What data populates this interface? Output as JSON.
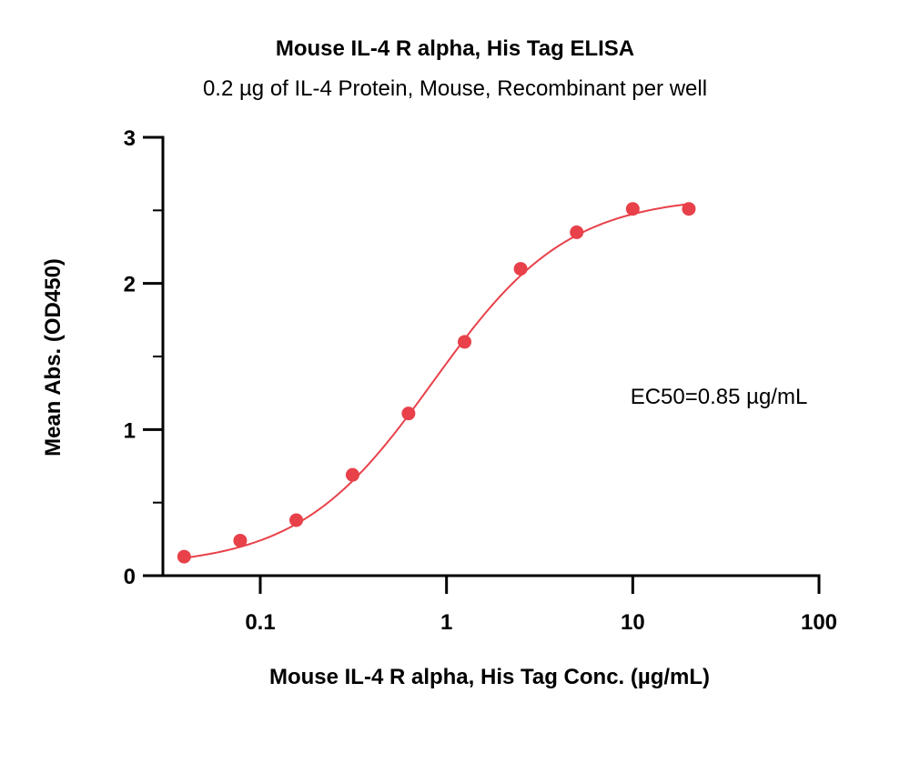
{
  "chart_data": {
    "type": "scatter",
    "title": "Mouse IL-4 R alpha, His Tag ELISA",
    "subtitle": "0.2 µg of IL-4 Protein, Mouse, Recombinant per well",
    "xlabel": "Mouse IL-4 R alpha, His Tag Conc. (µg/mL)",
    "ylabel": "Mean Abs. (OD450)",
    "x_scale": "log",
    "xlim": [
      0.03,
      100
    ],
    "ylim": [
      0,
      3
    ],
    "x_ticks": [
      0.1,
      1,
      10,
      100
    ],
    "x_tick_labels": [
      "0.1",
      "1",
      "10",
      "100"
    ],
    "y_ticks": [
      0,
      1,
      2,
      3
    ],
    "y_tick_labels": [
      "0",
      "1",
      "2",
      "3"
    ],
    "grid": false,
    "color": "#e8414a",
    "series": [
      {
        "x": [
          0.039,
          0.078,
          0.156,
          0.313,
          0.625,
          1.25,
          2.5,
          5,
          10,
          20
        ],
        "y": [
          0.13,
          0.24,
          0.38,
          0.69,
          1.11,
          1.6,
          2.1,
          2.35,
          2.51,
          2.51
        ]
      }
    ],
    "fit": {
      "model": "4PL",
      "bottom": 0.06,
      "top": 2.6,
      "ec50": 0.85,
      "hill": 1.2
    },
    "annotation": "EC50=0.85 µg/mL"
  }
}
